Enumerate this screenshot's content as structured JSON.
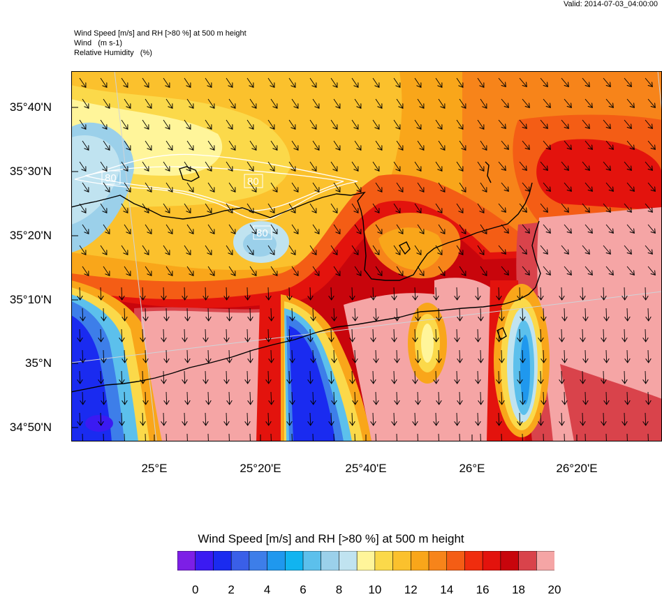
{
  "header": {
    "valid": "Valid: 2014-07-03_04:00:00",
    "line1": "Wind Speed [m/s] and RH [>80 %] at 500 m height",
    "line2": "Wind   (m s-1)",
    "line3": "Relative Humidity   (%)"
  },
  "axes": {
    "lat_labels": [
      "35°40'N",
      "35°30'N",
      "35°20'N",
      "35°10'N",
      "35°N",
      "34°50'N"
    ],
    "lon_labels": [
      "25°E",
      "25°20'E",
      "25°40'E",
      "26°E",
      "26°20'E"
    ]
  },
  "contour_labels": [
    "80",
    "80",
    "80"
  ],
  "colorbar": {
    "title": "Wind Speed [m/s] and RH [>80 %] at 500 m height",
    "labels": [
      "0",
      "2",
      "4",
      "6",
      "8",
      "10",
      "12",
      "14",
      "16",
      "18",
      "20"
    ],
    "colors": [
      "#7d1fe6",
      "#3b1af2",
      "#1a2bf0",
      "#3a5fe8",
      "#3d7ee9",
      "#1f98ee",
      "#11b4f0",
      "#5cc0ec",
      "#9bd0ea",
      "#c0e3f0",
      "#fff59a",
      "#fbd94a",
      "#fbc12d",
      "#f9a61a",
      "#f7841a",
      "#f45d15",
      "#f02d0e",
      "#e3130d",
      "#c8050c",
      "#d9434b",
      "#f5a5a5"
    ]
  }
}
